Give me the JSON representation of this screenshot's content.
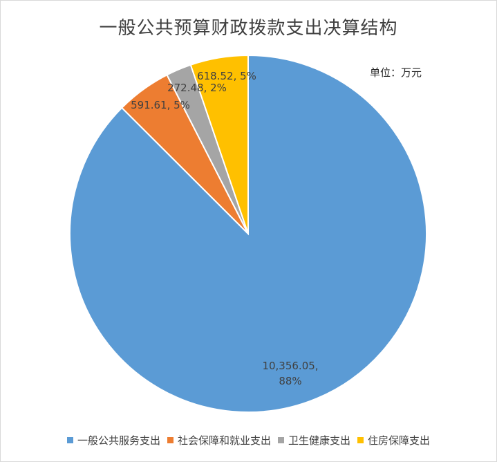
{
  "title": "一般公共预算财政拨款支出决算结构",
  "unit_label": "单位：万元",
  "chart_data": {
    "type": "pie",
    "title": "一般公共预算财政拨款支出决算结构",
    "unit": "单位：万元",
    "legend_position": "bottom",
    "slices": [
      {
        "name": "一般公共服务支出",
        "value": 10356.05,
        "value_text": "10,356.05,",
        "percent_text": "88%",
        "color": "#5b9bd5"
      },
      {
        "name": "社会保障和就业支出",
        "value": 591.61,
        "value_text": "591.61,",
        "percent_text": "5%",
        "color": "#ed7d31"
      },
      {
        "name": "卫生健康支出",
        "value": 272.48,
        "value_text": "272.48,",
        "percent_text": "2%",
        "color": "#a5a5a5"
      },
      {
        "name": "住房保障支出",
        "value": 618.52,
        "value_text": "618.52,",
        "percent_text": "5%",
        "color": "#ffc000"
      }
    ]
  }
}
